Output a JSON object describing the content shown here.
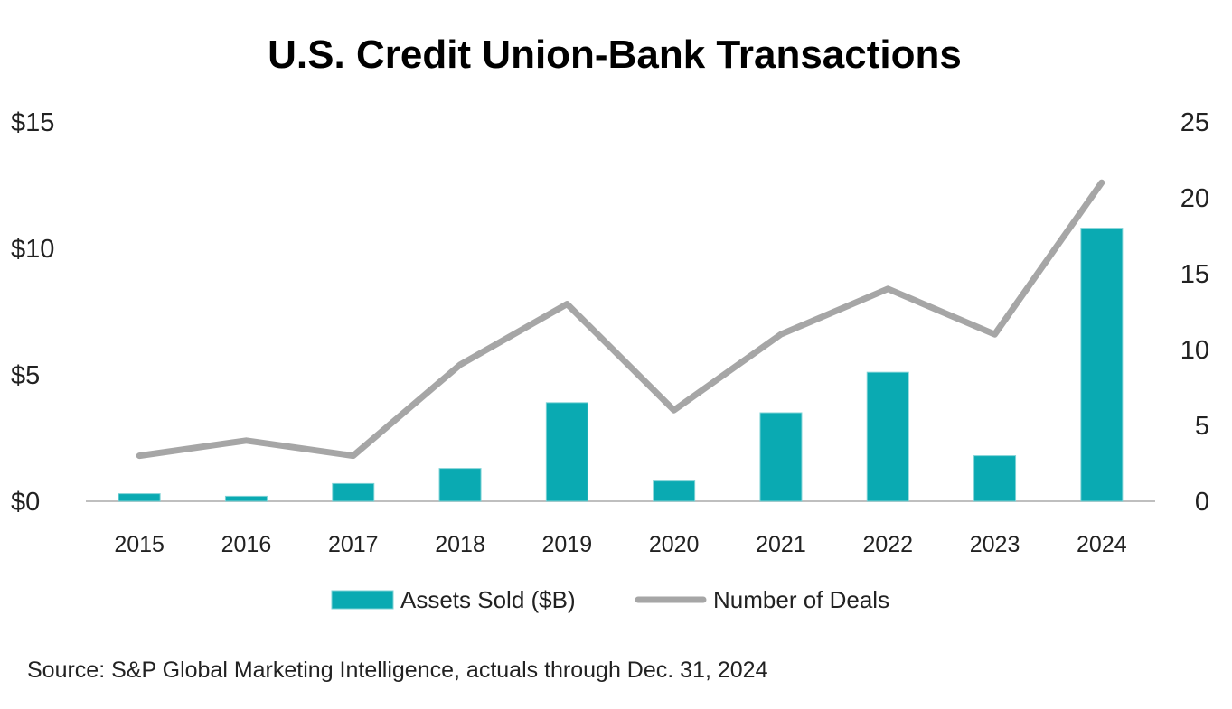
{
  "chart_data": {
    "type": "bar",
    "title": "U.S. Credit Union-Bank Transactions",
    "categories": [
      "2015",
      "2016",
      "2017",
      "2018",
      "2019",
      "2020",
      "2021",
      "2022",
      "2023",
      "2024"
    ],
    "series": [
      {
        "name": "Assets Sold ($B)",
        "type": "bar",
        "axis": "left",
        "color": "#0AAAB2",
        "values": [
          0.3,
          0.2,
          0.7,
          1.3,
          3.9,
          0.8,
          3.5,
          5.1,
          1.8,
          10.8
        ]
      },
      {
        "name": "Number of Deals",
        "type": "line",
        "axis": "right",
        "color": "#A6A6A6",
        "values": [
          3,
          4,
          3,
          9,
          13,
          6,
          11,
          14,
          11,
          21
        ]
      }
    ],
    "y_left": {
      "ylim": [
        0,
        15
      ],
      "ticks": [
        0,
        5,
        10,
        15
      ],
      "tick_labels": [
        "$0",
        "$5",
        "$10",
        "$15"
      ]
    },
    "y_right": {
      "ylim": [
        0,
        25
      ],
      "ticks": [
        0,
        5,
        10,
        15,
        20,
        25
      ],
      "tick_labels": [
        "0",
        "5",
        "10",
        "15",
        "20",
        "25"
      ]
    },
    "grid": false,
    "legend_position": "bottom",
    "source": "Source: S&P Global Marketing Intelligence, actuals through Dec. 31, 2024"
  }
}
